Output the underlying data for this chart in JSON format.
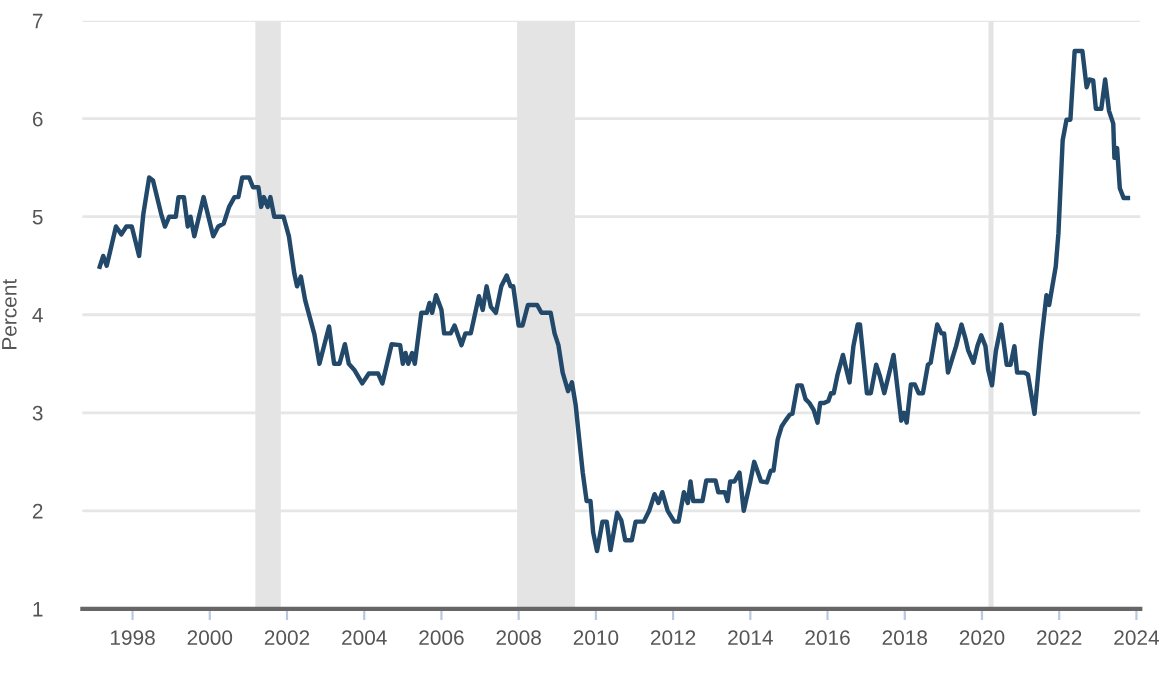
{
  "chart_data": {
    "type": "line",
    "ylabel": "Percent",
    "xlim": [
      1996.7,
      2024.1
    ],
    "ylim": [
      1,
      7
    ],
    "xticks": [
      1998,
      2000,
      2002,
      2004,
      2006,
      2008,
      2010,
      2012,
      2014,
      2016,
      2018,
      2020,
      2022,
      2024
    ],
    "yticks": [
      1,
      2,
      3,
      4,
      5,
      6,
      7
    ],
    "grid": "y",
    "legend": false,
    "bands": [
      {
        "axis": "x",
        "from": 2001.18,
        "to": 2001.84,
        "color": "#e4e4e4"
      },
      {
        "axis": "x",
        "from": 2007.96,
        "to": 2009.46,
        "color": "#e4e4e4"
      },
      {
        "axis": "x",
        "from": 2020.17,
        "to": 2020.3,
        "color": "#e4e4e4"
      }
    ],
    "series": [
      {
        "color": "#22496a",
        "x": [
          1997.15,
          1997.24,
          1997.33,
          1997.41,
          1997.57,
          1997.71,
          1997.84,
          1997.98,
          1998.17,
          1998.28,
          1998.43,
          1998.53,
          1998.74,
          1998.84,
          1998.95,
          1999.12,
          1999.19,
          1999.33,
          1999.43,
          1999.5,
          1999.6,
          1999.84,
          2000.09,
          2000.22,
          2000.36,
          2000.5,
          2000.64,
          2000.74,
          2000.84,
          2001.02,
          2001.12,
          2001.26,
          2001.33,
          2001.4,
          2001.5,
          2001.57,
          2001.67,
          2001.91,
          2002.05,
          2002.19,
          2002.26,
          2002.36,
          2002.47,
          2002.71,
          2002.84,
          2003.09,
          2003.22,
          2003.36,
          2003.5,
          2003.6,
          2003.74,
          2003.95,
          2004.12,
          2004.36,
          2004.47,
          2004.71,
          2004.93,
          2005.0,
          2005.07,
          2005.14,
          2005.24,
          2005.31,
          2005.48,
          2005.62,
          2005.69,
          2005.76,
          2005.86,
          2006.0,
          2006.07,
          2006.24,
          2006.34,
          2006.52,
          2006.62,
          2006.76,
          2006.97,
          2007.07,
          2007.17,
          2007.28,
          2007.41,
          2007.55,
          2007.69,
          2007.79,
          2007.86,
          2008.0,
          2008.1,
          2008.24,
          2008.48,
          2008.59,
          2008.83,
          2008.93,
          2009.03,
          2009.14,
          2009.28,
          2009.38,
          2009.48,
          2009.55,
          2009.66,
          2009.76,
          2009.86,
          2009.93,
          2010.03,
          2010.17,
          2010.28,
          2010.38,
          2010.55,
          2010.66,
          2010.76,
          2010.93,
          2011.03,
          2011.24,
          2011.38,
          2011.52,
          2011.62,
          2011.72,
          2011.86,
          2012.03,
          2012.14,
          2012.28,
          2012.38,
          2012.45,
          2012.52,
          2012.76,
          2012.86,
          2013.1,
          2013.17,
          2013.34,
          2013.41,
          2013.48,
          2013.59,
          2013.72,
          2013.83,
          2014.0,
          2014.1,
          2014.28,
          2014.43,
          2014.53,
          2014.6,
          2014.71,
          2014.81,
          2014.91,
          2015.02,
          2015.09,
          2015.22,
          2015.33,
          2015.43,
          2015.53,
          2015.64,
          2015.74,
          2015.81,
          2015.91,
          2016.02,
          2016.09,
          2016.16,
          2016.26,
          2016.4,
          2016.47,
          2016.57,
          2016.67,
          2016.78,
          2016.84,
          2017.02,
          2017.12,
          2017.26,
          2017.36,
          2017.47,
          2017.6,
          2017.71,
          2017.91,
          2017.98,
          2018.05,
          2018.16,
          2018.26,
          2018.36,
          2018.47,
          2018.6,
          2018.67,
          2018.84,
          2018.95,
          2019.02,
          2019.12,
          2019.22,
          2019.33,
          2019.47,
          2019.57,
          2019.64,
          2019.78,
          2019.88,
          2019.98,
          2020.09,
          2020.16,
          2020.26,
          2020.36,
          2020.5,
          2020.64,
          2020.74,
          2020.84,
          2020.91,
          2021.09,
          2021.19,
          2021.36,
          2021.53,
          2021.67,
          2021.74,
          2021.91,
          2021.98,
          2022.09,
          2022.19,
          2022.29,
          2022.4,
          2022.6,
          2022.71,
          2022.78,
          2022.88,
          2022.95,
          2023.09,
          2023.19,
          2023.29,
          2023.4,
          2023.43,
          2023.5,
          2023.57,
          2023.67,
          2023.78
        ],
        "values": [
          4.49,
          4.6,
          4.5,
          4.63,
          4.9,
          4.82,
          4.9,
          4.9,
          4.6,
          5.03,
          5.4,
          5.37,
          5.03,
          4.9,
          5.0,
          5.0,
          5.2,
          5.2,
          4.9,
          5.0,
          4.8,
          5.2,
          4.8,
          4.9,
          4.93,
          5.1,
          5.2,
          5.2,
          5.4,
          5.4,
          5.3,
          5.3,
          5.1,
          5.2,
          5.1,
          5.2,
          5.0,
          5.0,
          4.8,
          4.42,
          4.29,
          4.39,
          4.15,
          3.8,
          3.5,
          3.88,
          3.5,
          3.5,
          3.7,
          3.5,
          3.44,
          3.3,
          3.4,
          3.4,
          3.3,
          3.7,
          3.69,
          3.5,
          3.61,
          3.5,
          3.61,
          3.5,
          4.02,
          4.02,
          4.12,
          4.02,
          4.2,
          4.05,
          3.81,
          3.81,
          3.89,
          3.69,
          3.81,
          3.81,
          4.19,
          4.05,
          4.29,
          4.08,
          4.02,
          4.29,
          4.4,
          4.29,
          4.29,
          3.89,
          3.89,
          4.1,
          4.1,
          4.02,
          4.02,
          3.81,
          3.69,
          3.41,
          3.22,
          3.31,
          3.07,
          2.8,
          2.39,
          2.1,
          2.1,
          1.78,
          1.59,
          1.89,
          1.89,
          1.6,
          1.98,
          1.9,
          1.7,
          1.7,
          1.89,
          1.89,
          2.0,
          2.17,
          2.08,
          2.19,
          2.0,
          1.89,
          1.89,
          2.19,
          2.08,
          2.3,
          2.1,
          2.1,
          2.31,
          2.31,
          2.19,
          2.19,
          2.1,
          2.3,
          2.3,
          2.39,
          2.0,
          2.3,
          2.5,
          2.3,
          2.29,
          2.41,
          2.41,
          2.73,
          2.86,
          2.92,
          2.98,
          2.99,
          3.28,
          3.28,
          3.14,
          3.1,
          3.03,
          2.9,
          3.1,
          3.1,
          3.12,
          3.2,
          3.2,
          3.39,
          3.59,
          3.47,
          3.31,
          3.68,
          3.9,
          3.9,
          3.2,
          3.2,
          3.49,
          3.37,
          3.2,
          3.41,
          3.59,
          2.92,
          3.0,
          2.9,
          3.29,
          3.29,
          3.2,
          3.2,
          3.49,
          3.51,
          3.9,
          3.81,
          3.81,
          3.41,
          3.54,
          3.68,
          3.9,
          3.76,
          3.64,
          3.51,
          3.68,
          3.79,
          3.68,
          3.44,
          3.28,
          3.63,
          3.9,
          3.49,
          3.49,
          3.68,
          3.41,
          3.41,
          3.39,
          2.99,
          3.71,
          4.2,
          4.1,
          4.49,
          4.83,
          5.78,
          5.99,
          5.99,
          6.69,
          6.69,
          6.32,
          6.4,
          6.39,
          6.1,
          6.1,
          6.4,
          6.08,
          5.95,
          5.6,
          5.7,
          5.29,
          5.19,
          5.19
        ]
      }
    ]
  }
}
